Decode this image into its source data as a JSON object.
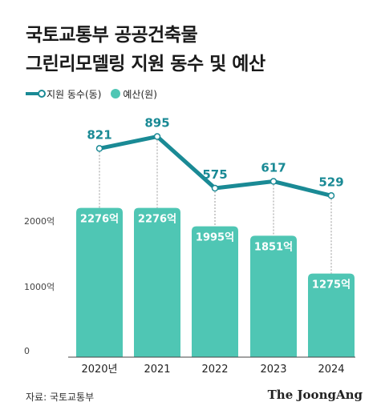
{
  "title": {
    "line1": "국토교통부 공공건축물",
    "line2": "그린리모델링 지원 동수 및 예산"
  },
  "legend": {
    "line_label": "지원 동수(동)",
    "bar_label": "예산(원)"
  },
  "colors": {
    "bar": "#4fc6b4",
    "line": "#1a8a95",
    "point_label": "#1a8a95",
    "bar_label": "#ffffff",
    "axis": "#444444"
  },
  "chart_data": {
    "type": "bar",
    "categories": [
      "2020년",
      "2021",
      "2022",
      "2023",
      "2024"
    ],
    "series": [
      {
        "name": "예산(원)",
        "type": "bar",
        "values": [
          2276,
          2276,
          1995,
          1851,
          1275
        ],
        "labels": [
          "2276억",
          "2276억",
          "1995억",
          "1851억",
          "1275억"
        ]
      },
      {
        "name": "지원 동수(동)",
        "type": "line",
        "values": [
          821,
          895,
          575,
          617,
          529
        ],
        "labels": [
          "821",
          "895",
          "575",
          "617",
          "529"
        ]
      }
    ],
    "ylim": [
      0,
      2500
    ],
    "yticks": [
      0,
      1000,
      2000
    ],
    "ytick_labels": [
      "0",
      "1000억",
      "2000억"
    ],
    "grid": false
  },
  "footer": {
    "source": "자료: 국토교통부",
    "brand": "The JoongAng"
  }
}
